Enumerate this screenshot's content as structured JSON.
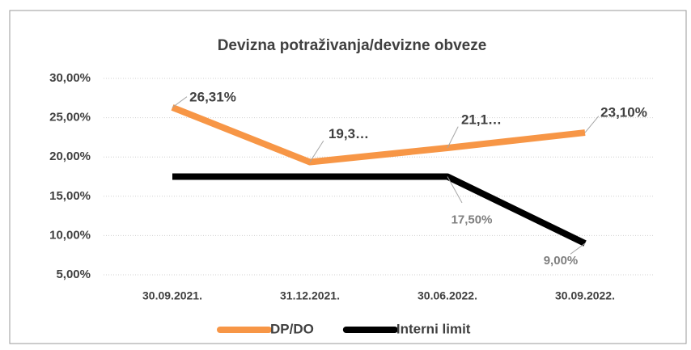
{
  "chart_data": {
    "type": "line",
    "title": "Devizna potraživanja/devizne obveze",
    "categories": [
      "30.09.2021.",
      "31.12.2021.",
      "30.06.2022.",
      "30.09.2022."
    ],
    "series": [
      {
        "name": "DP/DO",
        "color": "#f79646",
        "values": [
          26.31,
          19.35,
          21.15,
          23.1
        ],
        "value_labels": [
          "26,31%",
          "19,3…",
          "21,1…",
          "23,10%"
        ]
      },
      {
        "name": "Interni limit",
        "color": "#000000",
        "values": [
          17.5,
          17.5,
          17.5,
          9.0
        ],
        "value_labels": [
          null,
          null,
          "17,50%",
          "9,00%"
        ]
      }
    ],
    "ylim": [
      5,
      30
    ],
    "yticks": [
      {
        "value": 5,
        "label": "5,00%"
      },
      {
        "value": 10,
        "label": "10,00%"
      },
      {
        "value": 15,
        "label": "15,00%"
      },
      {
        "value": 20,
        "label": "20,00%"
      },
      {
        "value": 25,
        "label": "25,00%"
      },
      {
        "value": 30,
        "label": "30,00%"
      }
    ],
    "grid": true,
    "legend": "bottom"
  }
}
